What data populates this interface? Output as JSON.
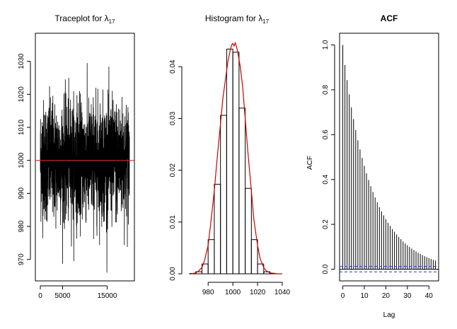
{
  "colors": {
    "trace": "#000000",
    "refline": "#d62728",
    "hist_bar": "#000000",
    "density": "#cc0000",
    "acf_bars": "#000000",
    "ci_line": "#1f3fbf"
  },
  "chart_data": [
    {
      "type": "line",
      "title_prefix": "Traceplot for ",
      "title_symbol": "λ",
      "title_subscript": "17",
      "xlabel": "",
      "ylabel": "",
      "xlim": [
        0,
        20000
      ],
      "ylim": [
        965,
        1037
      ],
      "x_ticks": [
        0,
        5000,
        15000
      ],
      "x_tick_labels": [
        "0",
        "5000",
        "15000"
      ],
      "y_ticks": [
        970,
        980,
        990,
        1000,
        1010,
        1020,
        1030
      ],
      "y_tick_labels": [
        "970",
        "980",
        "990",
        "1000",
        "1010",
        "1020",
        "1030"
      ],
      "reference_line_y": 1000,
      "series": [
        {
          "n_samples": 20000,
          "mean": 1000,
          "sd": 9,
          "min": 966,
          "max": 1035.5
        }
      ],
      "grid": false
    },
    {
      "type": "bar",
      "title_prefix": "Histogram for ",
      "title_symbol": "λ",
      "title_subscript": "17",
      "xlabel": "",
      "ylabel": "",
      "xlim": [
        965,
        1040
      ],
      "ylim": [
        0,
        0.0455
      ],
      "x_ticks": [
        980,
        1000,
        1020,
        1040
      ],
      "x_tick_labels": [
        "980",
        "1000",
        "1020",
        "1040"
      ],
      "y_ticks": [
        0,
        0.01,
        0.02,
        0.03,
        0.04
      ],
      "y_tick_labels": [
        "0.00",
        "0.01",
        "0.02",
        "0.03",
        "0.04"
      ],
      "bin_edges": [
        965,
        970,
        975,
        980,
        985,
        990,
        995,
        1000,
        1005,
        1010,
        1015,
        1020,
        1025,
        1030,
        1035
      ],
      "values": [
        5e-05,
        0.0004,
        0.0019,
        0.0066,
        0.0173,
        0.0306,
        0.0434,
        0.0428,
        0.032,
        0.0165,
        0.0066,
        0.0019,
        0.0004,
        5e-05
      ],
      "density_x": [
        967,
        970,
        972,
        975,
        977,
        980,
        982,
        985,
        987,
        990,
        992,
        994,
        996,
        998,
        999,
        1000,
        1001,
        1002,
        1003,
        1004,
        1006,
        1008,
        1010,
        1012,
        1015,
        1017,
        1020,
        1022,
        1025,
        1027,
        1030,
        1033,
        1036,
        1040
      ],
      "density_y": [
        0.0,
        0.0002,
        0.0005,
        0.0012,
        0.0025,
        0.0055,
        0.0095,
        0.016,
        0.0215,
        0.029,
        0.034,
        0.0375,
        0.041,
        0.0433,
        0.0442,
        0.0445,
        0.044,
        0.0446,
        0.0438,
        0.0428,
        0.04,
        0.036,
        0.03,
        0.024,
        0.016,
        0.0105,
        0.0055,
        0.003,
        0.0012,
        0.0006,
        0.0002,
        0.0001,
        0.0,
        0.0
      ],
      "grid": false
    },
    {
      "type": "bar",
      "title": "ACF",
      "xlabel": "Lag",
      "ylabel": "ACF",
      "xlim": [
        -1.5,
        44.5
      ],
      "ylim": [
        -0.03,
        1.03
      ],
      "x_ticks": [
        0,
        10,
        20,
        30,
        40
      ],
      "x_tick_labels": [
        "0",
        "10",
        "20",
        "30",
        "40"
      ],
      "y_ticks": [
        0,
        0.2,
        0.4,
        0.6,
        0.8,
        1.0
      ],
      "y_tick_labels": [
        "0.0",
        "0.2",
        "0.4",
        "0.6",
        "0.8",
        "1.0"
      ],
      "lags": [
        0,
        1,
        2,
        3,
        4,
        5,
        6,
        7,
        8,
        9,
        10,
        11,
        12,
        13,
        14,
        15,
        16,
        17,
        18,
        19,
        20,
        21,
        22,
        23,
        24,
        25,
        26,
        27,
        28,
        29,
        30,
        31,
        32,
        33,
        34,
        35,
        36,
        37,
        38,
        39,
        40,
        41,
        42,
        43
      ],
      "values": [
        1.0,
        0.91,
        0.843,
        0.78,
        0.722,
        0.669,
        0.62,
        0.575,
        0.534,
        0.496,
        0.461,
        0.428,
        0.398,
        0.37,
        0.344,
        0.32,
        0.298,
        0.277,
        0.258,
        0.24,
        0.223,
        0.207,
        0.193,
        0.179,
        0.167,
        0.155,
        0.144,
        0.134,
        0.124,
        0.115,
        0.107,
        0.099,
        0.092,
        0.085,
        0.079,
        0.073,
        0.068,
        0.063,
        0.058,
        0.054,
        0.05,
        0.046,
        0.042,
        0.039
      ],
      "ci": [
        0.012,
        -0.012
      ],
      "grid": false
    }
  ]
}
